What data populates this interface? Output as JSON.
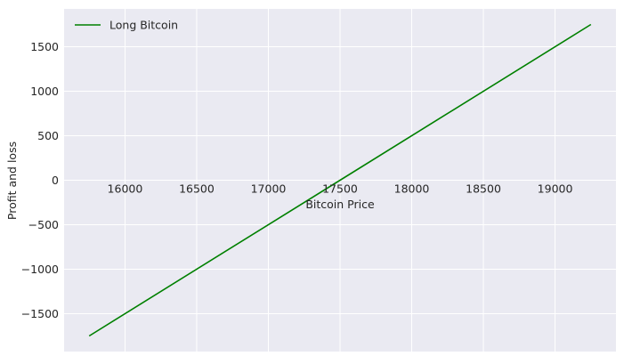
{
  "chart_data": {
    "type": "line",
    "title": "",
    "xlabel": "Bitcoin Price",
    "ylabel": "Profit and loss",
    "xlim": [
      15575,
      19425
    ],
    "ylim": [
      -1925,
      1925
    ],
    "xticks": [
      16000,
      16500,
      17000,
      17500,
      18000,
      18500,
      19000
    ],
    "yticks": [
      -1500,
      -1000,
      -500,
      0,
      500,
      1000,
      1500
    ],
    "grid": true,
    "legend": "top-left",
    "background": "#eaeaf2",
    "grid_color": "#ffffff",
    "series": [
      {
        "name": "Long Bitcoin",
        "color": "#008000",
        "x": [
          15750,
          19250
        ],
        "y": [
          -1750,
          1750
        ]
      }
    ]
  }
}
